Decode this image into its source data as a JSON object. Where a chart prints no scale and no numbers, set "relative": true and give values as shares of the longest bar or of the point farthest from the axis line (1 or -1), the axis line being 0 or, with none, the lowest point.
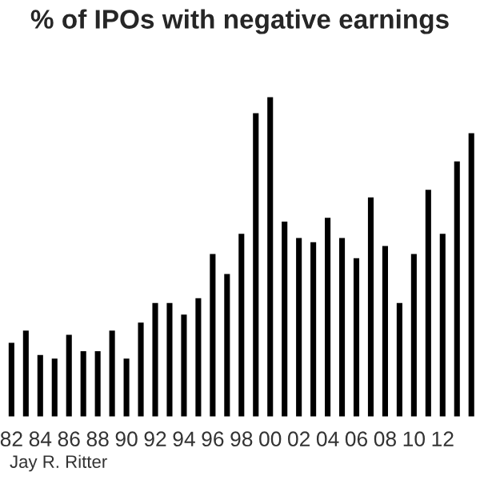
{
  "chart_data": {
    "type": "bar",
    "title": "% of IPOs with negative earnings",
    "relative": true,
    "categories": [
      "82",
      null,
      "84",
      null,
      "86",
      null,
      "88",
      null,
      "90",
      null,
      "92",
      null,
      "94",
      null,
      "96",
      null,
      "98",
      null,
      "00",
      null,
      "02",
      null,
      "04",
      null,
      "06",
      null,
      "08",
      null,
      "10",
      null,
      "12",
      null,
      null
    ],
    "values": [
      0.236,
      0.274,
      0.198,
      0.187,
      0.261,
      0.21,
      0.21,
      0.274,
      0.187,
      0.299,
      0.36,
      0.36,
      0.324,
      0.375,
      0.512,
      0.45,
      0.575,
      0.95,
      1,
      0.613,
      0.562,
      0.549,
      0.625,
      0.562,
      0.499,
      0.688,
      0.537,
      0.36,
      0.512,
      0.712,
      0.575,
      0.8,
      0.888
    ],
    "color": "#000000",
    "grid": false,
    "legend": false,
    "annotations": [
      "Jay R. Ritter"
    ]
  }
}
